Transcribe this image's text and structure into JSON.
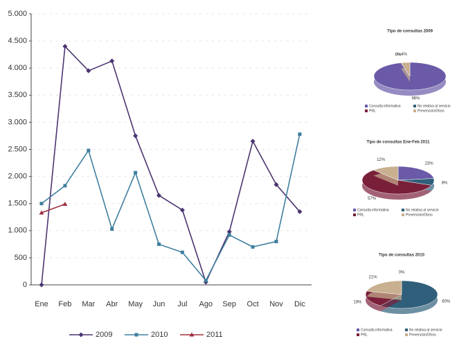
{
  "chart_data": [
    {
      "type": "line",
      "categories": [
        "Ene",
        "Feb",
        "Mar",
        "Abr",
        "May",
        "Jun",
        "Jul",
        "Ago",
        "Sep",
        "Oct",
        "Nov",
        "Dic"
      ],
      "ylim": [
        0,
        5000
      ],
      "yticks": [
        0,
        500,
        {
          "value": 1000,
          "label": "1.000"
        },
        {
          "value": 1500,
          "label": "1.500"
        },
        {
          "value": 2000,
          "label": "2.000"
        },
        {
          "value": 2500,
          "label": "2.500"
        },
        {
          "value": 3000,
          "label": "3.000"
        },
        {
          "value": 3500,
          "label": "3.500"
        },
        {
          "value": 4000,
          "label": "4.000"
        },
        {
          "value": 4500,
          "label": "4.500"
        },
        {
          "value": 5000,
          "label": "5.000"
        }
      ],
      "grid": true,
      "series": [
        {
          "name": "2009",
          "color": "#4b3470",
          "marker": "diamond",
          "values": [
            0,
            4400,
            3950,
            4130,
            2750,
            1650,
            1380,
            50,
            980,
            2650,
            1850,
            1350
          ]
        },
        {
          "name": "2010",
          "color": "#3f7fa0",
          "marker": "square",
          "values": [
            1500,
            1830,
            2480,
            1030,
            2070,
            750,
            600,
            80,
            920,
            700,
            800,
            2780
          ]
        },
        {
          "name": "2011",
          "color": "#a03040",
          "marker": "triangle",
          "values": [
            1330,
            1490,
            null,
            null,
            null,
            null,
            null,
            null,
            null,
            null,
            null,
            null
          ]
        }
      ]
    },
    {
      "type": "pie",
      "title": "Tipo de consultas 2009",
      "categories": [
        "Consulta informativa",
        "No relativa al servicio",
        "PRL",
        "Prevención/Otros"
      ],
      "colors": [
        "#6a5aa8",
        "#2f5f7a",
        "#7a1f3a",
        "#c8b090"
      ],
      "values": [
        96,
        0,
        0,
        4
      ],
      "value_labels": [
        "96%",
        "0%",
        "0%",
        "4%"
      ]
    },
    {
      "type": "pie",
      "title": "Tipo de consultas Ene-Feb 2011",
      "categories": [
        "Consulta informativa",
        "No relativa al servicio",
        "PRL",
        "Prevención/Otros"
      ],
      "colors": [
        "#6a5aa8",
        "#2f5f7a",
        "#7a1f3a",
        "#c8b090"
      ],
      "values": [
        23,
        8,
        57,
        12
      ],
      "value_labels": [
        "23%",
        "8%",
        "57%",
        "12%"
      ]
    },
    {
      "type": "pie",
      "title": "Tipo de consultas 2010",
      "categories": [
        "Consulta informativa",
        "No relativa al servicio",
        "PRL",
        "Prevención/Otros"
      ],
      "colors": [
        "#6a5aa8",
        "#2f5f7a",
        "#7a1f3a",
        "#c8b090"
      ],
      "values": [
        0,
        60,
        19,
        21
      ],
      "value_labels": [
        "0%",
        "60%",
        "19%",
        "21%"
      ]
    }
  ]
}
